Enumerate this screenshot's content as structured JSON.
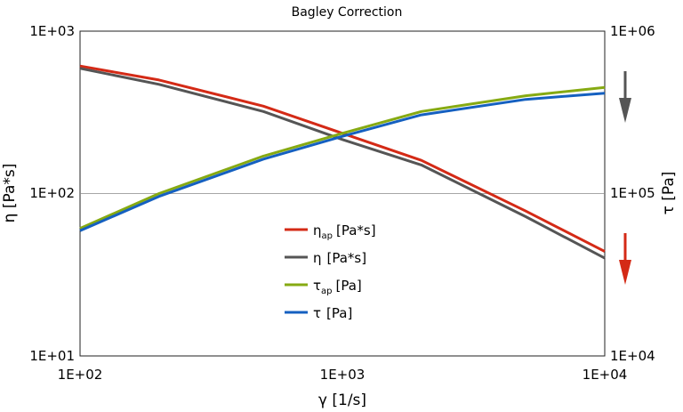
{
  "chart_data": {
    "type": "line",
    "title": "Bagley Correction",
    "xlabel": "γ [1/s]",
    "ylabel_left": "η [Pa*s]",
    "ylabel_right": "τ [Pa]",
    "x_scale": "log",
    "xlim": [
      100,
      10000
    ],
    "x_ticks": [
      "1E+02",
      "1E+03",
      "1E+04"
    ],
    "left_axis": {
      "scale": "log",
      "ylim": [
        10,
        1000
      ],
      "ticks": [
        "1E+01",
        "1E+02",
        "1E+03"
      ]
    },
    "right_axis": {
      "scale": "log",
      "ylim": [
        10000,
        1000000
      ],
      "ticks": [
        "1E+04",
        "1E+05",
        "1E+06"
      ]
    },
    "grid": "horizontal at 1E+02",
    "legend_position": "center",
    "series": [
      {
        "name": "η",
        "sub": "ap",
        "unit": "[Pa*s]",
        "axis": "left",
        "color": "#d42a16",
        "x": [
          100,
          200,
          500,
          1000,
          2000,
          5000,
          10000
        ],
        "y": [
          610,
          500,
          345,
          235,
          160,
          78,
          44
        ]
      },
      {
        "name": "η",
        "sub": "",
        "unit": "[Pa*s]",
        "axis": "left",
        "color": "#555555",
        "x": [
          100,
          200,
          500,
          1000,
          2000,
          5000,
          10000
        ],
        "y": [
          590,
          470,
          320,
          215,
          150,
          72,
          40
        ]
      },
      {
        "name": "τ",
        "sub": "ap",
        "unit": "[Pa]",
        "axis": "right",
        "color": "#86aa12",
        "x": [
          100,
          200,
          500,
          1000,
          2000,
          5000,
          10000
        ],
        "y": [
          61000,
          100000,
          170000,
          235000,
          320000,
          400000,
          450000
        ]
      },
      {
        "name": "τ",
        "sub": "",
        "unit": "[Pa]",
        "axis": "right",
        "color": "#1560c0",
        "x": [
          100,
          200,
          500,
          1000,
          2000,
          5000,
          10000
        ],
        "y": [
          59000,
          96000,
          163000,
          225000,
          305000,
          380000,
          415000
        ]
      }
    ],
    "arrows": [
      {
        "icon": "arrow-down-icon",
        "color": "#555555",
        "meaning": "right axis"
      },
      {
        "icon": "arrow-down-icon",
        "color": "#d42a16",
        "meaning": "left axis"
      }
    ]
  }
}
